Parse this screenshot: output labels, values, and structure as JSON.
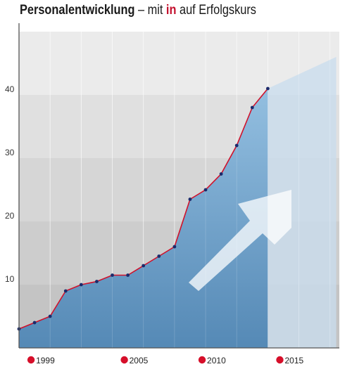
{
  "title": {
    "main": "Personalentwicklung",
    "dash": " – mit ",
    "brand": "in",
    "rest": " auf Erfolgskurs"
  },
  "colors": {
    "line": "#d0112b",
    "point": "#1b2a6b",
    "area": "#5b93c3",
    "projection": "#c9dced",
    "legend_dot": "#d60f2a"
  },
  "chart_data": {
    "type": "area",
    "x": [
      1998,
      1999,
      2000,
      2001,
      2002,
      2003,
      2004,
      2005,
      2006,
      2007,
      2008,
      2009,
      2010,
      2011,
      2012,
      2013,
      2014
    ],
    "values": [
      3,
      4,
      5,
      9,
      10,
      10.5,
      11.5,
      11.5,
      13,
      14.5,
      16,
      23.5,
      25,
      27.5,
      32,
      38,
      41
    ],
    "projection": {
      "x": [
        2014,
        2018.4
      ],
      "values": [
        41,
        46
      ]
    },
    "ylim": [
      0,
      50
    ],
    "xlim": [
      1998,
      2018.6
    ],
    "y_ticks": [
      10,
      20,
      30,
      40
    ],
    "x_legend_labels": [
      "1999",
      "2005",
      "2010",
      "2015"
    ],
    "grid": true
  }
}
